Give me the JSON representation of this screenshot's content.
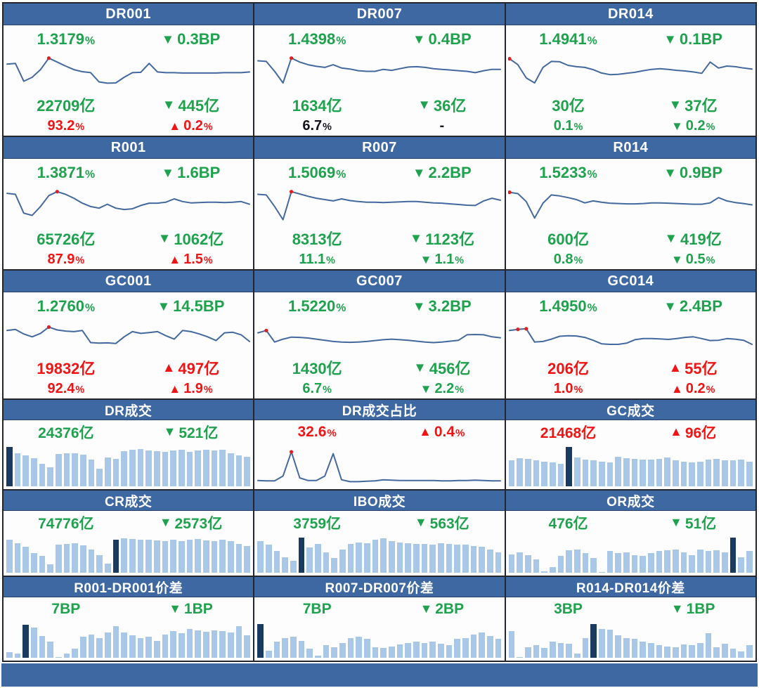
{
  "colors": {
    "header_bg": "#3E68A2",
    "grid_line": "#23262D",
    "panel_bg": "#FDFDFE",
    "line": "#44699E",
    "dot": "#E02020",
    "bar_light": "#A9C7E6",
    "bar_dark": "#1B3A60",
    "green": "#1FA24E",
    "red": "#F01414",
    "dark_text": "#15151F"
  },
  "chart_data_note": "sparkline/bar values are normalized 0-100 of panel chart height; source image shows no numeric axes. dots = red highlight point indices, dark_bars = dark highlighted bar indices.",
  "chart_data": [
    {
      "id": "dr001",
      "title": "DR001",
      "type": "line",
      "layout": "rate",
      "stats": [
        [
          {
            "text": "1.3179%",
            "color": "green"
          },
          {
            "icon": "down",
            "text": "0.3BP",
            "color": "green"
          }
        ],
        [
          {
            "text": "22709亿",
            "color": "green"
          },
          {
            "icon": "down",
            "text": "445亿",
            "color": "green"
          }
        ],
        [
          {
            "text": "93.2%",
            "color": "red"
          },
          {
            "icon": "up",
            "text": "0.2%",
            "color": "red"
          }
        ]
      ],
      "values": [
        72,
        74,
        20,
        32,
        55,
        90,
        78,
        66,
        55,
        49,
        46,
        18,
        14,
        15,
        32,
        46,
        47,
        74,
        48,
        46,
        46,
        45,
        45,
        45,
        45,
        45,
        46,
        46,
        46,
        48
      ],
      "dots": [
        5
      ]
    },
    {
      "id": "dr007",
      "title": "DR007",
      "type": "line",
      "layout": "rate",
      "stats": [
        [
          {
            "text": "1.4398%",
            "color": "green"
          },
          {
            "icon": "down",
            "text": "0.4BP",
            "color": "green"
          }
        ],
        [
          {
            "text": "1634亿",
            "color": "green"
          },
          {
            "icon": "down",
            "text": "36亿",
            "color": "green"
          }
        ],
        [
          {
            "text": "6.7%",
            "color": "dark"
          },
          {
            "text": "-",
            "color": "dark"
          }
        ]
      ],
      "values": [
        82,
        80,
        50,
        15,
        90,
        78,
        70,
        65,
        62,
        70,
        60,
        57,
        52,
        50,
        50,
        56,
        53,
        58,
        63,
        64,
        62,
        58,
        56,
        54,
        52,
        50,
        46,
        52,
        56,
        56
      ],
      "dots": [
        4
      ]
    },
    {
      "id": "dr014",
      "title": "DR014",
      "type": "line",
      "layout": "rate",
      "stats": [
        [
          {
            "text": "1.4941%",
            "color": "green"
          },
          {
            "icon": "down",
            "text": "0.1BP",
            "color": "green"
          }
        ],
        [
          {
            "text": "30亿",
            "color": "green"
          },
          {
            "icon": "down",
            "text": "37亿",
            "color": "green"
          }
        ],
        [
          {
            "text": "0.1%",
            "color": "green"
          },
          {
            "icon": "down",
            "text": "0.2%",
            "color": "green"
          }
        ]
      ],
      "values": [
        88,
        70,
        30,
        15,
        62,
        80,
        79,
        68,
        64,
        62,
        55,
        45,
        40,
        41,
        44,
        47,
        52,
        56,
        58,
        56,
        53,
        51,
        48,
        44,
        78,
        60,
        66,
        64,
        60,
        57
      ],
      "dots": [
        0
      ]
    },
    {
      "id": "r001",
      "title": "R001",
      "type": "line",
      "layout": "rate",
      "stats": [
        [
          {
            "text": "1.3871%",
            "color": "green"
          },
          {
            "icon": "down",
            "text": "1.6BP",
            "color": "green"
          }
        ],
        [
          {
            "text": "65726亿",
            "color": "green"
          },
          {
            "icon": "down",
            "text": "1062亿",
            "color": "green"
          }
        ],
        [
          {
            "text": "87.9%",
            "color": "red"
          },
          {
            "icon": "up",
            "text": "1.5%",
            "color": "red"
          }
        ]
      ],
      "values": [
        85,
        82,
        25,
        18,
        45,
        78,
        90,
        82,
        70,
        55,
        45,
        40,
        52,
        40,
        36,
        38,
        48,
        55,
        55,
        58,
        68,
        60,
        56,
        57,
        58,
        58,
        57,
        58,
        60,
        52
      ],
      "dots": [
        6
      ]
    },
    {
      "id": "r007",
      "title": "R007",
      "type": "line",
      "layout": "rate",
      "stats": [
        [
          {
            "text": "1.5069%",
            "color": "green"
          },
          {
            "icon": "down",
            "text": "2.2BP",
            "color": "green"
          }
        ],
        [
          {
            "text": "8313亿",
            "color": "green"
          },
          {
            "icon": "down",
            "text": "1123亿",
            "color": "green"
          }
        ],
        [
          {
            "text": "11.1%",
            "color": "green"
          },
          {
            "icon": "down",
            "text": "1.1%",
            "color": "green"
          }
        ]
      ],
      "values": [
        82,
        80,
        45,
        5,
        90,
        83,
        76,
        70,
        66,
        62,
        68,
        63,
        60,
        58,
        58,
        57,
        58,
        59,
        60,
        60,
        58,
        56,
        55,
        53,
        51,
        49,
        48,
        62,
        70,
        64
      ],
      "dots": [
        4
      ]
    },
    {
      "id": "r014",
      "title": "R014",
      "type": "line",
      "layout": "rate",
      "stats": [
        [
          {
            "text": "1.5233%",
            "color": "green"
          },
          {
            "icon": "down",
            "text": "0.9BP",
            "color": "green"
          }
        ],
        [
          {
            "text": "600亿",
            "color": "green"
          },
          {
            "icon": "down",
            "text": "419亿",
            "color": "green"
          }
        ],
        [
          {
            "text": "0.8%",
            "color": "green"
          },
          {
            "icon": "down",
            "text": "0.5%",
            "color": "green"
          }
        ]
      ],
      "values": [
        88,
        84,
        60,
        10,
        55,
        80,
        77,
        72,
        66,
        56,
        62,
        58,
        55,
        54,
        53,
        53,
        54,
        56,
        56,
        55,
        54,
        53,
        52,
        52,
        56,
        72,
        62,
        57,
        54,
        50
      ],
      "dots": [
        0
      ]
    },
    {
      "id": "gc001",
      "title": "GC001",
      "type": "line",
      "layout": "rate",
      "stats": [
        [
          {
            "text": "1.2760%",
            "color": "green"
          },
          {
            "icon": "down",
            "text": "14.5BP",
            "color": "green"
          }
        ],
        [
          {
            "text": "19832亿",
            "color": "red"
          },
          {
            "icon": "up",
            "text": "497亿",
            "color": "red"
          }
        ],
        [
          {
            "text": "92.4%",
            "color": "red"
          },
          {
            "icon": "up",
            "text": "1.9%",
            "color": "red"
          }
        ]
      ],
      "values": [
        70,
        74,
        58,
        48,
        60,
        82,
        72,
        68,
        66,
        70,
        28,
        26,
        27,
        25,
        48,
        66,
        60,
        63,
        66,
        52,
        40,
        70,
        66,
        58,
        48,
        35,
        62,
        64,
        55,
        32
      ],
      "dots": [
        5
      ]
    },
    {
      "id": "gc007",
      "title": "GC007",
      "type": "line",
      "layout": "rate",
      "stats": [
        [
          {
            "text": "1.5220%",
            "color": "green"
          },
          {
            "icon": "down",
            "text": "3.2BP",
            "color": "green"
          }
        ],
        [
          {
            "text": "1430亿",
            "color": "green"
          },
          {
            "icon": "down",
            "text": "456亿",
            "color": "green"
          }
        ],
        [
          {
            "text": "6.7%",
            "color": "green"
          },
          {
            "icon": "down",
            "text": "2.2%",
            "color": "green"
          }
        ]
      ],
      "values": [
        62,
        70,
        30,
        40,
        47,
        46,
        44,
        40,
        36,
        32,
        30,
        29,
        30,
        32,
        35,
        38,
        40,
        38,
        36,
        33,
        30,
        28,
        30,
        33,
        36,
        55,
        56,
        55,
        48,
        45
      ],
      "dots": [
        1
      ]
    },
    {
      "id": "gc014",
      "title": "GC014",
      "type": "line",
      "layout": "rate",
      "stats": [
        [
          {
            "text": "1.4950%",
            "color": "green"
          },
          {
            "icon": "down",
            "text": "2.4BP",
            "color": "green"
          }
        ],
        [
          {
            "text": "206亿",
            "color": "red"
          },
          {
            "icon": "up",
            "text": "55亿",
            "color": "red"
          }
        ],
        [
          {
            "text": "1.0%",
            "color": "red"
          },
          {
            "icon": "up",
            "text": "0.2%",
            "color": "red"
          }
        ]
      ],
      "values": [
        70,
        74,
        76,
        30,
        32,
        40,
        50,
        52,
        51,
        46,
        36,
        24,
        22,
        22,
        26,
        38,
        42,
        42,
        41,
        39,
        42,
        46,
        48,
        42,
        35,
        36,
        42,
        40,
        36,
        22
      ],
      "dots": [
        1,
        2
      ]
    },
    {
      "id": "dr-volume",
      "title": "DR成交",
      "type": "bar",
      "layout": "volume-bar",
      "stats": [
        [
          {
            "text": "24376亿",
            "color": "green"
          },
          {
            "icon": "down",
            "text": "521亿",
            "color": "green"
          }
        ]
      ],
      "values": [
        95,
        80,
        74,
        68,
        55,
        45,
        78,
        80,
        79,
        77,
        64,
        42,
        70,
        66,
        84,
        88,
        90,
        87,
        85,
        83,
        86,
        88,
        83,
        86,
        88,
        86,
        88,
        80,
        74,
        72
      ],
      "dark_bars": [
        0
      ]
    },
    {
      "id": "dr-volume-share",
      "title": "DR成交占比",
      "type": "line",
      "layout": "share-line",
      "stats": [
        [
          {
            "text": "32.6%",
            "color": "red"
          },
          {
            "icon": "up",
            "text": "0.4%",
            "color": "red"
          }
        ]
      ],
      "values": [
        8,
        7,
        7,
        20,
        85,
        15,
        8,
        8,
        20,
        80,
        10,
        5,
        5,
        6,
        7,
        10,
        9,
        8,
        8,
        8,
        8,
        8,
        7,
        7,
        8,
        8,
        9,
        8,
        7,
        7
      ],
      "dots": [
        4
      ]
    },
    {
      "id": "gc-volume",
      "title": "GC成交",
      "type": "bar",
      "layout": "volume-bar",
      "stats": [
        [
          {
            "text": "21468亿",
            "color": "red"
          },
          {
            "icon": "up",
            "text": "96亿",
            "color": "red"
          }
        ]
      ],
      "values": [
        62,
        68,
        66,
        62,
        60,
        58,
        55,
        95,
        70,
        65,
        62,
        60,
        58,
        72,
        68,
        66,
        65,
        64,
        66,
        70,
        62,
        60,
        58,
        60,
        64,
        66,
        63,
        62,
        65,
        60
      ],
      "dark_bars": [
        7
      ]
    },
    {
      "id": "cr-volume",
      "title": "CR成交",
      "type": "bar",
      "layout": "volume-bar",
      "stats": [
        [
          {
            "text": "74776亿",
            "color": "green"
          },
          {
            "icon": "down",
            "text": "2573亿",
            "color": "green"
          }
        ]
      ],
      "values": [
        88,
        80,
        70,
        52,
        45,
        22,
        75,
        78,
        80,
        74,
        62,
        48,
        25,
        88,
        92,
        90,
        88,
        88,
        86,
        85,
        88,
        85,
        88,
        90,
        86,
        85,
        88,
        84,
        78,
        72
      ],
      "dark_bars": [
        13
      ]
    },
    {
      "id": "ibo-volume",
      "title": "IBO成交",
      "type": "bar",
      "layout": "volume-bar",
      "stats": [
        [
          {
            "text": "3759亿",
            "color": "green"
          },
          {
            "icon": "down",
            "text": "563亿",
            "color": "green"
          }
        ]
      ],
      "values": [
        85,
        75,
        58,
        42,
        33,
        95,
        68,
        78,
        55,
        40,
        62,
        78,
        82,
        80,
        88,
        92,
        85,
        82,
        80,
        78,
        78,
        76,
        80,
        78,
        76,
        75,
        72,
        70,
        62,
        55
      ],
      "dark_bars": [
        5
      ]
    },
    {
      "id": "or-volume",
      "title": "OR成交",
      "type": "bar",
      "layout": "volume-bar",
      "stats": [
        [
          {
            "text": "476亿",
            "color": "green"
          },
          {
            "icon": "down",
            "text": "51亿",
            "color": "green"
          }
        ]
      ],
      "values": [
        50,
        55,
        48,
        35,
        3,
        15,
        45,
        60,
        62,
        52,
        40,
        2,
        58,
        52,
        55,
        48,
        45,
        52,
        58,
        60,
        62,
        55,
        48,
        62,
        58,
        60,
        55,
        95,
        42,
        58
      ],
      "dark_bars": [
        27
      ]
    },
    {
      "id": "r001-dr001-spread",
      "title": "R001-DR001价差",
      "type": "bar",
      "layout": "spread-bar",
      "stats": [
        [
          {
            "text": "7BP",
            "color": "green"
          },
          {
            "icon": "down",
            "text": "1BP",
            "color": "green"
          }
        ]
      ],
      "values": [
        15,
        12,
        92,
        85,
        60,
        45,
        2,
        12,
        25,
        58,
        64,
        55,
        70,
        88,
        70,
        62,
        55,
        58,
        48,
        64,
        74,
        68,
        80,
        76,
        72,
        76,
        74,
        70,
        88,
        62
      ],
      "dark_bars": [
        2
      ]
    },
    {
      "id": "r007-dr007-spread",
      "title": "R007-DR007价差",
      "type": "bar",
      "layout": "spread-bar",
      "stats": [
        [
          {
            "text": "7BP",
            "color": "green"
          },
          {
            "icon": "down",
            "text": "2BP",
            "color": "green"
          }
        ]
      ],
      "values": [
        95,
        20,
        45,
        55,
        58,
        48,
        25,
        5,
        35,
        30,
        42,
        55,
        58,
        52,
        30,
        28,
        32,
        38,
        42,
        45,
        42,
        45,
        40,
        35,
        52,
        55,
        65,
        70,
        60,
        52
      ],
      "dark_bars": [
        0
      ]
    },
    {
      "id": "r014-dr014-spread",
      "title": "R014-DR014价差",
      "type": "bar",
      "layout": "spread-bar",
      "stats": [
        [
          {
            "text": "3BP",
            "color": "green"
          },
          {
            "icon": "down",
            "text": "1BP",
            "color": "green"
          }
        ]
      ],
      "values": [
        75,
        2,
        30,
        35,
        28,
        45,
        42,
        40,
        12,
        55,
        95,
        80,
        78,
        62,
        55,
        52,
        45,
        42,
        35,
        32,
        30,
        38,
        35,
        42,
        68,
        30,
        40,
        25,
        18,
        35
      ],
      "dark_bars": [
        10
      ]
    }
  ]
}
